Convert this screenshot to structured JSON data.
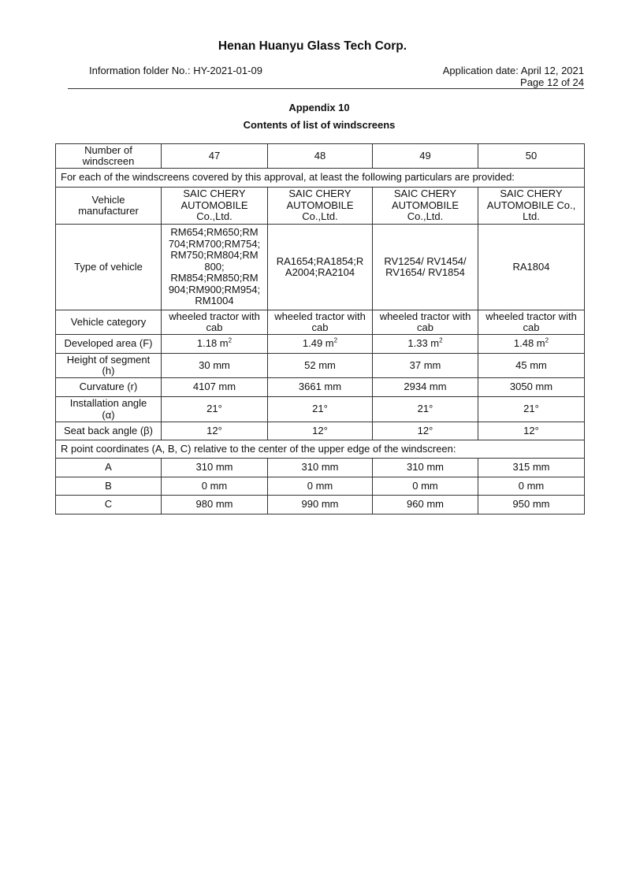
{
  "header": {
    "company": "Henan Huanyu Glass Tech Corp.",
    "folder": "Information folder No.: HY-2021-01-09",
    "application_date": "Application date: April 12, 2021",
    "page": "Page 12 of 24"
  },
  "title": {
    "appendix": "Appendix 10",
    "subtitle": "Contents of list of windscreens"
  },
  "table": {
    "number_label": "Number of\nwindscreen",
    "numbers": [
      "47",
      "48",
      "49",
      "50"
    ],
    "intro": "For each of the windscreens covered by this approval, at least the following particulars are provided:",
    "rows": [
      {
        "label": "Vehicle\nmanufacturer",
        "values": [
          "SAIC CHERY\nAUTOMOBILE\nCo.,Ltd.",
          "SAIC CHERY\nAUTOMOBILE\nCo.,Ltd.",
          "SAIC CHERY\nAUTOMOBILE\nCo.,Ltd.",
          "SAIC CHERY\nAUTOMOBILE Co.,\nLtd."
        ]
      },
      {
        "label": "Type of vehicle",
        "values": [
          "RM654;RM650;RM\n704;RM700;RM754;\nRM750;RM804;RM\n800;\nRM854;RM850;RM\n904;RM900;RM954;\nRM1004",
          "RA1654;RA1854;R\nA2004;RA2104",
          "RV1254/ RV1454/\nRV1654/ RV1854",
          "RA1804"
        ]
      },
      {
        "label": "Vehicle category",
        "values": [
          "wheeled tractor with\ncab",
          "wheeled tractor with\ncab",
          "wheeled tractor with\ncab",
          "wheeled tractor with\ncab"
        ]
      },
      {
        "label": "Developed area (F)",
        "values": [
          "1.18 m",
          "1.49 m",
          "1.33 m",
          "1.48 m"
        ],
        "unit_sup": "2"
      },
      {
        "label": "Height of segment\n(h)",
        "values": [
          "30 mm",
          "52 mm",
          "37 mm",
          "45 mm"
        ]
      },
      {
        "label": "Curvature (r)",
        "values": [
          "4107 mm",
          "3661 mm",
          "2934 mm",
          "3050 mm"
        ]
      },
      {
        "label": "Installation angle\n(α)",
        "values": [
          "21°",
          "21°",
          "21°",
          "21°"
        ]
      },
      {
        "label": "Seat back angle (β)",
        "values": [
          "12°",
          "12°",
          "12°",
          "12°"
        ]
      }
    ],
    "r_point_intro": "R point coordinates (A, B, C) relative to the center of the upper edge of the windscreen:",
    "r_points": [
      {
        "label": "A",
        "values": [
          "310 mm",
          "310 mm",
          "310 mm",
          "315 mm"
        ]
      },
      {
        "label": "B",
        "values": [
          "0 mm",
          "0 mm",
          "0 mm",
          "0 mm"
        ]
      },
      {
        "label": "C",
        "values": [
          "980 mm",
          "990 mm",
          "960 mm",
          "950 mm"
        ]
      }
    ]
  }
}
